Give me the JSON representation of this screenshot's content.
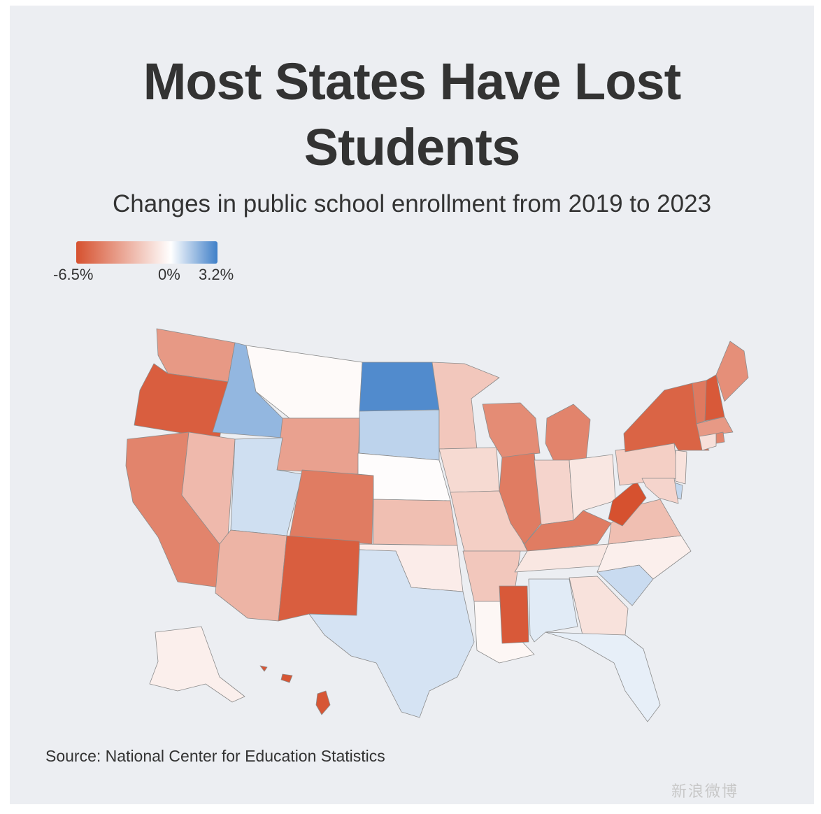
{
  "title_line1": "Most States Have Lost",
  "title_line2": "Students",
  "subtitle": "Changes in public school enrollment from 2019 to 2023",
  "legend": {
    "min_label": "-6.5%",
    "mid_label": "0%",
    "max_label": "3.2%",
    "colors": {
      "negative": "#d6512f",
      "neutral": "#ffffff",
      "positive": "#3f7fc8"
    }
  },
  "source": "Source: National Center for Education Statistics",
  "watermark": "新浪微博",
  "map_data": {
    "type": "choropleth",
    "region": "United States",
    "scale": {
      "min": -6.5,
      "mid": 0,
      "max": 3.2
    },
    "states": [
      {
        "name": "Washington",
        "value": -3.8
      },
      {
        "name": "Oregon",
        "value": -6.0
      },
      {
        "name": "California",
        "value": -4.6
      },
      {
        "name": "Nevada",
        "value": -2.6
      },
      {
        "name": "Idaho",
        "value": 1.8
      },
      {
        "name": "Montana",
        "value": -0.2
      },
      {
        "name": "Wyoming",
        "value": -3.5
      },
      {
        "name": "Utah",
        "value": 0.8
      },
      {
        "name": "Arizona",
        "value": -2.8
      },
      {
        "name": "Colorado",
        "value": -4.9
      },
      {
        "name": "New Mexico",
        "value": -6.0
      },
      {
        "name": "North Dakota",
        "value": 2.9
      },
      {
        "name": "South Dakota",
        "value": 1.1
      },
      {
        "name": "Nebraska",
        "value": -0.1
      },
      {
        "name": "Kansas",
        "value": -2.4
      },
      {
        "name": "Oklahoma",
        "value": -0.7
      },
      {
        "name": "Texas",
        "value": 0.7
      },
      {
        "name": "Minnesota",
        "value": -2.1
      },
      {
        "name": "Iowa",
        "value": -1.4
      },
      {
        "name": "Missouri",
        "value": -1.8
      },
      {
        "name": "Arkansas",
        "value": -2.1
      },
      {
        "name": "Louisiana",
        "value": -0.3
      },
      {
        "name": "Wisconsin",
        "value": -4.3
      },
      {
        "name": "Illinois",
        "value": -4.9
      },
      {
        "name": "Michigan",
        "value": -4.6
      },
      {
        "name": "Indiana",
        "value": -1.6
      },
      {
        "name": "Ohio",
        "value": -0.9
      },
      {
        "name": "Kentucky",
        "value": -4.9
      },
      {
        "name": "Tennessee",
        "value": -0.9
      },
      {
        "name": "Mississippi",
        "value": -6.2
      },
      {
        "name": "Alabama",
        "value": 0.5
      },
      {
        "name": "Georgia",
        "value": -1.1
      },
      {
        "name": "Florida",
        "value": 0.4
      },
      {
        "name": "South Carolina",
        "value": 0.9
      },
      {
        "name": "North Carolina",
        "value": -0.6
      },
      {
        "name": "Virginia",
        "value": -2.4
      },
      {
        "name": "West Virginia",
        "value": -6.5
      },
      {
        "name": "Pennsylvania",
        "value": -1.8
      },
      {
        "name": "New York",
        "value": -5.8
      },
      {
        "name": "Vermont",
        "value": -5.0
      },
      {
        "name": "New Hampshire",
        "value": -6.2
      },
      {
        "name": "Maine",
        "value": -4.2
      },
      {
        "name": "Massachusetts",
        "value": -3.8
      },
      {
        "name": "Rhode Island",
        "value": -4.6
      },
      {
        "name": "Connecticut",
        "value": -1.2
      },
      {
        "name": "New Jersey",
        "value": -1.1
      },
      {
        "name": "Delaware",
        "value": 1.0
      },
      {
        "name": "Maryland",
        "value": -1.6
      },
      {
        "name": "Alaska",
        "value": -0.6
      },
      {
        "name": "Hawaii",
        "value": -6.3
      }
    ]
  }
}
